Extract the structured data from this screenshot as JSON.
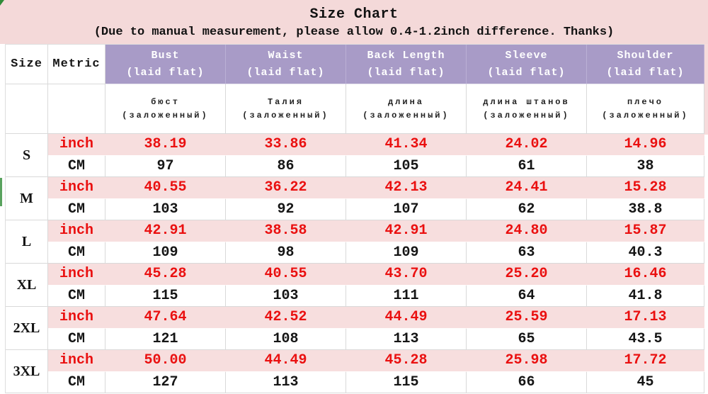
{
  "title": {
    "line1": "Size Chart",
    "line2": "(Due to manual measurement, please allow 0.4-1.2inch difference. Thanks)"
  },
  "header": {
    "size_label": "Size",
    "metric_label": "Metric",
    "columns": [
      {
        "key": "bust",
        "en": "Bust",
        "sub": "(laid flat)",
        "ru": "бюст",
        "ru_sub": "(заложенный)"
      },
      {
        "key": "waist",
        "en": "Waist",
        "sub": "(laid flat)",
        "ru": "Талия",
        "ru_sub": "(заложенный)"
      },
      {
        "key": "back-length",
        "en": "Back Length",
        "sub": "(laid flat)",
        "ru": "длина",
        "ru_sub": "(заложенный)"
      },
      {
        "key": "sleeve",
        "en": "Sleeve",
        "sub": "(laid flat)",
        "ru": "длина штанов",
        "ru_sub": "(заложенный)"
      },
      {
        "key": "shoulder",
        "en": "Shoulder",
        "sub": "(laid flat)",
        "ru": "плечо",
        "ru_sub": "(заложенный)"
      }
    ]
  },
  "unit_labels": {
    "inch": "inch",
    "cm": "CM"
  },
  "rows": [
    {
      "size": "S",
      "inch": [
        "38.19",
        "33.86",
        "41.34",
        "24.02",
        "14.96"
      ],
      "cm": [
        "97",
        "86",
        "105",
        "61",
        "38"
      ]
    },
    {
      "size": "M",
      "inch": [
        "40.55",
        "36.22",
        "42.13",
        "24.41",
        "15.28"
      ],
      "cm": [
        "103",
        "92",
        "107",
        "62",
        "38.8"
      ]
    },
    {
      "size": "L",
      "inch": [
        "42.91",
        "38.58",
        "42.91",
        "24.80",
        "15.87"
      ],
      "cm": [
        "109",
        "98",
        "109",
        "63",
        "40.3"
      ]
    },
    {
      "size": "XL",
      "inch": [
        "45.28",
        "40.55",
        "43.70",
        "25.20",
        "16.46"
      ],
      "cm": [
        "115",
        "103",
        "111",
        "64",
        "41.8"
      ]
    },
    {
      "size": "2XL",
      "inch": [
        "47.64",
        "42.52",
        "44.49",
        "25.59",
        "17.13"
      ],
      "cm": [
        "121",
        "108",
        "113",
        "65",
        "43.5"
      ]
    },
    {
      "size": "3XL",
      "inch": [
        "50.00",
        "44.49",
        "45.28",
        "25.98",
        "17.72"
      ],
      "cm": [
        "127",
        "113",
        "115",
        "66",
        "45"
      ]
    }
  ],
  "colors": {
    "title_band_pink": "#f4d9d9",
    "header_purple": "#a89bc7",
    "inch_row_pink": "#f7dede",
    "inch_text_red": "#ea1010",
    "body_text_black": "#151515",
    "grid_line_gray": "#d9d9d9",
    "artifact_green": "#2f8b38"
  }
}
